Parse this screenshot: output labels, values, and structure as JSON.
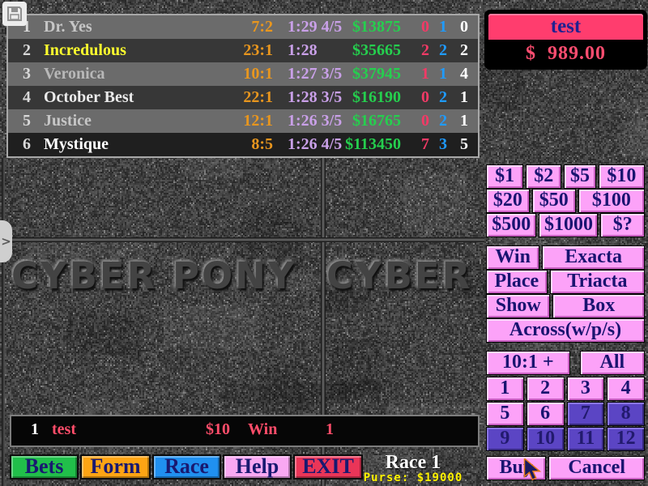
{
  "table": {
    "rows": [
      {
        "num": "1",
        "name": "Dr. Yes",
        "name_color": "#c6c6c6",
        "odds": "7:2",
        "time": "1:29 4/5",
        "pool": "$13875",
        "s1": "0",
        "s2": "1",
        "s3": "0"
      },
      {
        "num": "2",
        "name": "Incredulous",
        "name_color": "#ffff2e",
        "odds": "23:1",
        "time": "1:28",
        "pool": "$35665",
        "s1": "2",
        "s2": "2",
        "s3": "2"
      },
      {
        "num": "3",
        "name": "Veronica",
        "name_color": "#b8b8b8",
        "odds": "10:1",
        "time": "1:27 3/5",
        "pool": "$37945",
        "s1": "1",
        "s2": "1",
        "s3": "4"
      },
      {
        "num": "4",
        "name": "October Best",
        "name_color": "#eaeaea",
        "odds": "22:1",
        "time": "1:28 3/5",
        "pool": "$16190",
        "s1": "0",
        "s2": "2",
        "s3": "1"
      },
      {
        "num": "5",
        "name": "Justice",
        "name_color": "#c6c6c6",
        "odds": "12:1",
        "time": "1:26 3/5",
        "pool": "$16765",
        "s1": "0",
        "s2": "2",
        "s3": "1"
      },
      {
        "num": "6",
        "name": "Mystique",
        "name_color": "#ffffff",
        "odds": "8:5",
        "time": "1:26 4/5",
        "pool": "$113450",
        "s1": "7",
        "s2": "3",
        "s3": "5"
      }
    ]
  },
  "account": {
    "name": "test",
    "balance": "$  989.00"
  },
  "amounts": [
    [
      "$1",
      "$2",
      "$5",
      "$10"
    ],
    [
      "$20",
      "$50",
      "$100"
    ],
    [
      "$500",
      "$1000",
      "$?"
    ]
  ],
  "bet_types": {
    "rows": [
      [
        "Win",
        "Exacta"
      ],
      [
        "Place",
        "Triacta"
      ],
      [
        "Show",
        "Box"
      ]
    ],
    "across": "Across(w/p/s)"
  },
  "filters": {
    "ten_to_one": "10:1 +",
    "all": "All"
  },
  "horse_grid": {
    "numbers": [
      "1",
      "2",
      "3",
      "4",
      "5",
      "6",
      "7",
      "8",
      "9",
      "10",
      "11",
      "12"
    ]
  },
  "actions": {
    "buy": "Buy",
    "cancel": "Cancel"
  },
  "current_bet": {
    "slot": "1",
    "bettor": "test",
    "amount": "$10",
    "type": "Win",
    "selection": "1"
  },
  "menu": {
    "items": [
      {
        "label": "Bets",
        "color": "#21bf4a"
      },
      {
        "label": "Form",
        "color": "#fda414"
      },
      {
        "label": "Race",
        "color": "#2090f0"
      },
      {
        "label": "Help",
        "color": "#f9a8f2"
      },
      {
        "label": "EXIT",
        "color": "#ea3558"
      }
    ]
  },
  "race": {
    "number": "Race 1",
    "purse": "Purse: $19000"
  },
  "background": {
    "logo": "CYBER PONY"
  },
  "drawer": {
    "glyph": ">"
  },
  "colors": {
    "button_pink": "#fca2f8",
    "button_disabled_purple": "#5b45c4",
    "accent_pink": "#ff3d6e",
    "odds_orange": "#e8961e",
    "time_violet": "#c9a0e8",
    "pool_green": "#25cf4e",
    "stat_pink": "#f23a66",
    "stat_blue": "#1f9bff",
    "purse_yellow": "#fff200"
  }
}
